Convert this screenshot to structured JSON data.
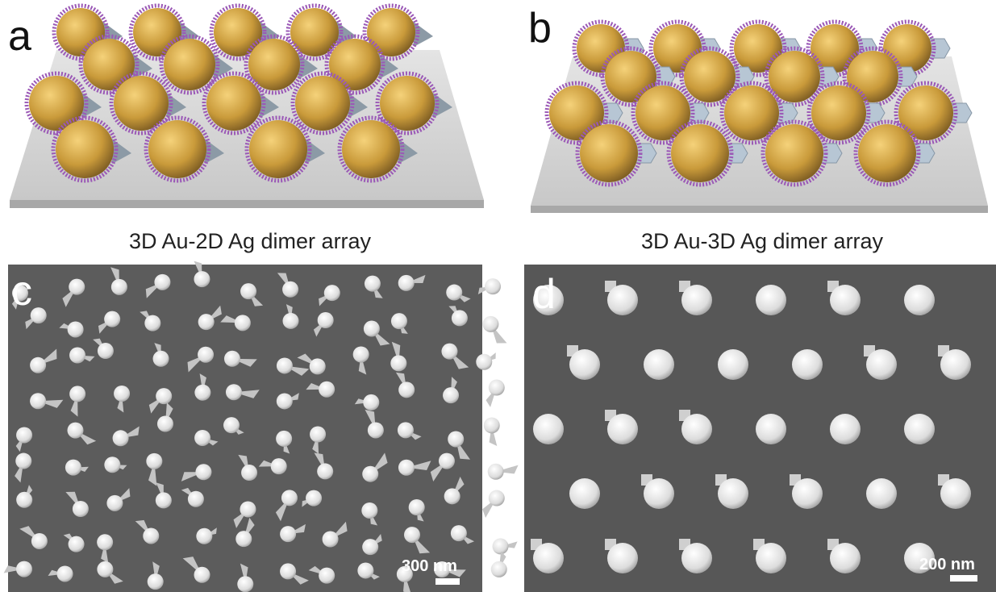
{
  "panels": [
    {
      "label": "a",
      "caption": "3D Au-2D Ag  dimer array"
    },
    {
      "label": "b",
      "caption": "3D Au-3D Ag  dimer array"
    },
    {
      "label": "c",
      "scale_bar": "300 nm"
    },
    {
      "label": "d",
      "scale_bar": "200 nm"
    }
  ]
}
